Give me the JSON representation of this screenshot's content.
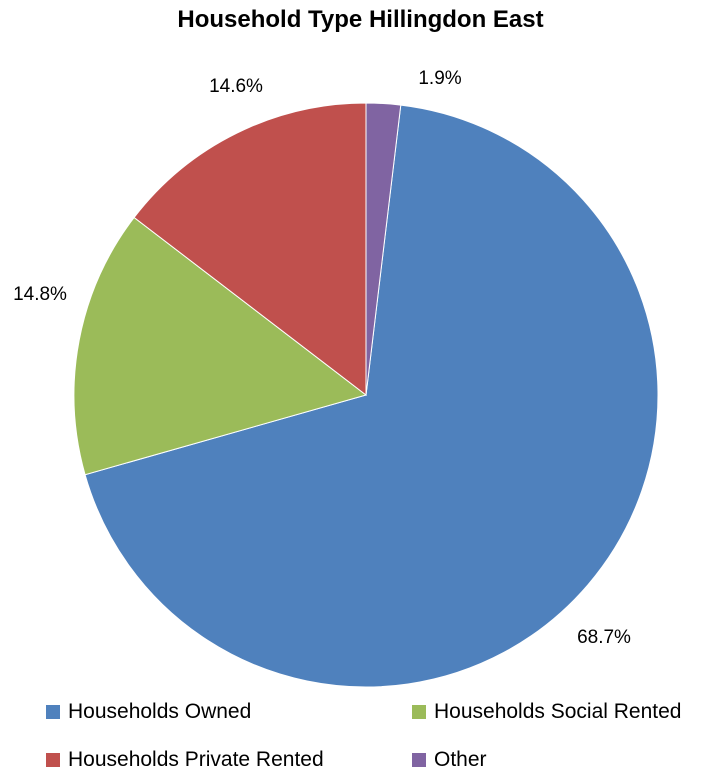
{
  "chart_data": {
    "type": "pie",
    "title": "Household Type Hillingdon East",
    "categories": [
      "Households Owned",
      "Households Social Rented",
      "Households Private Rented",
      "Other"
    ],
    "values": [
      68.7,
      14.8,
      14.6,
      1.9
    ],
    "data_labels": [
      "68.7%",
      "14.8%",
      "14.6%",
      "1.9%"
    ],
    "colors": [
      "#4F81BD",
      "#9BBB59",
      "#C0504D",
      "#8064A2"
    ],
    "legend_position": "bottom"
  }
}
